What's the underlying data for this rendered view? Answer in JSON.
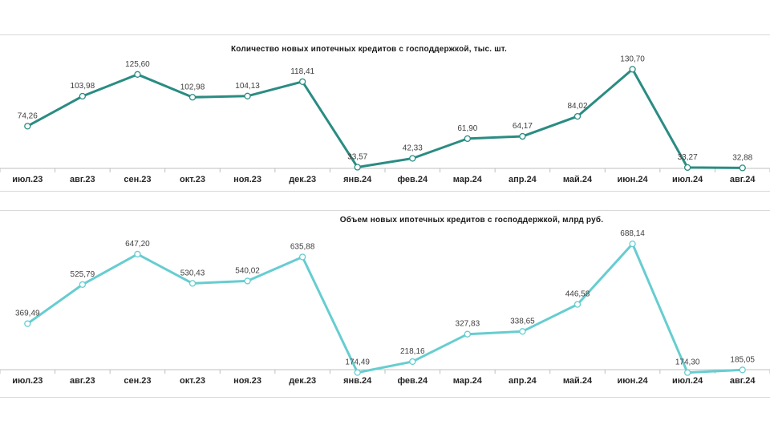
{
  "chart_data": [
    {
      "type": "line",
      "title": "Количество  новых  ипотечных  кредитов с господдержкой, тыс. шт.",
      "categories": [
        "июл.23",
        "авг.23",
        "сен.23",
        "окт.23",
        "ноя.23",
        "дек.23",
        "янв.24",
        "фев.24",
        "мар.24",
        "апр.24",
        "май.24",
        "июн.24",
        "июл.24",
        "авг.24"
      ],
      "value_labels": [
        "74,26",
        "103,98",
        "125,60",
        "102,98",
        "104,13",
        "118,41",
        "33,57",
        "42,33",
        "61,90",
        "64,17",
        "84,02",
        "130,70",
        "33,27",
        "32,88"
      ],
      "series": [
        {
          "values": [
            74.26,
            103.98,
            125.6,
            102.98,
            104.13,
            118.41,
            33.57,
            42.33,
            61.9,
            64.17,
            84.02,
            130.7,
            33.27,
            32.88
          ]
        }
      ],
      "ylim": [
        30,
        135
      ],
      "color": "#2a8c82",
      "grid": false
    },
    {
      "type": "line",
      "title": "Объем  новых  ипотечных  кредитов  с  господдержкой,  млрд руб.",
      "categories": [
        "июл.23",
        "авг.23",
        "сен.23",
        "окт.23",
        "ноя.23",
        "дек.23",
        "янв.24",
        "фев.24",
        "мар.24",
        "апр.24",
        "май.24",
        "июн.24",
        "июл.24",
        "авг.24"
      ],
      "value_labels": [
        "369,49",
        "525,79",
        "647,20",
        "530,43",
        "540,02",
        "635,88",
        "174,49",
        "218,16",
        "327,83",
        "338,65",
        "446,58",
        "688,14",
        "174,30",
        "185,05"
      ],
      "series": [
        {
          "values": [
            369.49,
            525.79,
            647.2,
            530.43,
            540.02,
            635.88,
            174.49,
            218.16,
            327.83,
            338.65,
            446.58,
            688.14,
            174.3,
            185.05
          ]
        }
      ],
      "ylim": [
        170,
        695
      ],
      "color": "#66cdd0",
      "grid": false
    }
  ]
}
